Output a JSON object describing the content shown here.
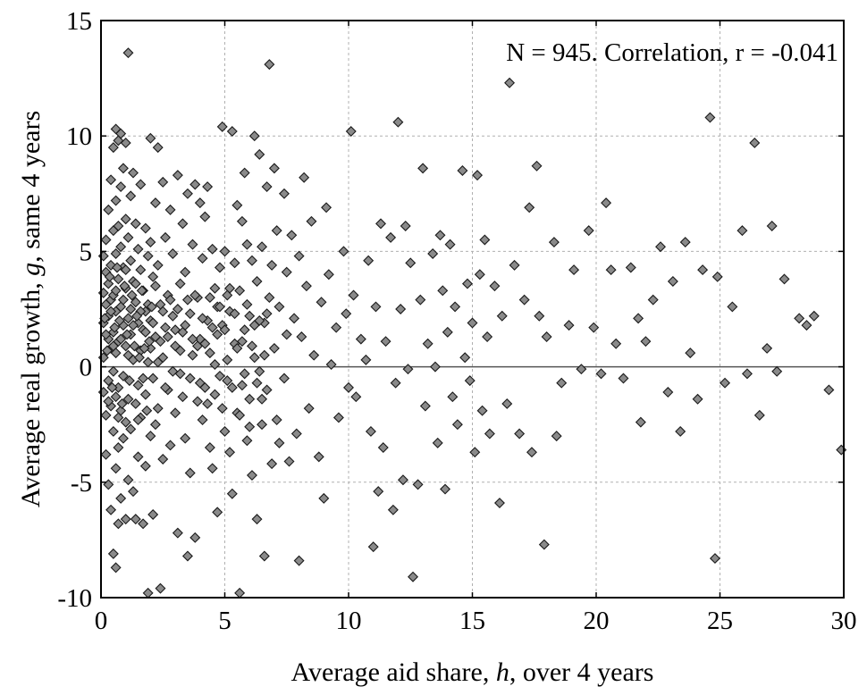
{
  "chart_data": {
    "type": "scatter",
    "title": "",
    "annotation": "N = 945. Correlation, r = -0.041",
    "xlabel_prefix": "Average aid share, ",
    "xlabel_var": "h",
    "xlabel_suffix": ", over 4 years",
    "ylabel_prefix": "Average real growth, ",
    "ylabel_var": "g",
    "ylabel_suffix": ", same 4 years",
    "xlim": [
      0,
      30
    ],
    "ylim": [
      -10,
      15
    ],
    "xticks": [
      0,
      5,
      10,
      15,
      20,
      25,
      30
    ],
    "yticks": [
      -10,
      -5,
      0,
      5,
      10,
      15
    ],
    "grid": "dashed",
    "zero_line": true,
    "marker": "diamond",
    "colors": {
      "marker_fill": "#8a8a8a",
      "marker_edge": "#1a1a1a",
      "grid": "#b0b0b0",
      "axis": "#000000"
    },
    "sample_size": 945,
    "correlation": -0.041,
    "points": [
      [
        0.1,
        4.8
      ],
      [
        0.1,
        3.2
      ],
      [
        0.1,
        1.9
      ],
      [
        0.1,
        0.4
      ],
      [
        0.1,
        -1.1
      ],
      [
        0.2,
        5.5
      ],
      [
        0.2,
        2.7
      ],
      [
        0.2,
        -2.1
      ],
      [
        0.2,
        -3.8
      ],
      [
        0.2,
        4.1
      ],
      [
        0.3,
        6.8
      ],
      [
        0.3,
        3.6
      ],
      [
        0.3,
        1.2
      ],
      [
        0.3,
        -0.6
      ],
      [
        0.3,
        -5.1
      ],
      [
        0.3,
        2.2
      ],
      [
        0.4,
        8.1
      ],
      [
        0.4,
        4.4
      ],
      [
        0.4,
        0.8
      ],
      [
        0.4,
        -1.7
      ],
      [
        0.4,
        -6.2
      ],
      [
        0.4,
        2.9
      ],
      [
        0.5,
        9.5
      ],
      [
        0.5,
        5.9
      ],
      [
        0.5,
        3.1
      ],
      [
        0.5,
        -0.2
      ],
      [
        0.5,
        -2.8
      ],
      [
        0.5,
        -8.1
      ],
      [
        0.5,
        1.5
      ],
      [
        0.6,
        10.3
      ],
      [
        0.6,
        7.2
      ],
      [
        0.6,
        4.9
      ],
      [
        0.6,
        2.4
      ],
      [
        0.6,
        -1.3
      ],
      [
        0.6,
        -4.4
      ],
      [
        0.6,
        -8.7
      ],
      [
        0.6,
        0.6
      ],
      [
        0.7,
        9.8
      ],
      [
        0.7,
        6.1
      ],
      [
        0.7,
        3.8
      ],
      [
        0.7,
        1.1
      ],
      [
        0.7,
        -0.9
      ],
      [
        0.7,
        -3.5
      ],
      [
        0.7,
        -6.8
      ],
      [
        0.8,
        10.1
      ],
      [
        0.8,
        7.8
      ],
      [
        0.8,
        5.2
      ],
      [
        0.8,
        2.6
      ],
      [
        0.8,
        -1.9
      ],
      [
        0.8,
        -5.7
      ],
      [
        0.9,
        8.6
      ],
      [
        0.9,
        4.3
      ],
      [
        0.9,
        1.8
      ],
      [
        0.9,
        -0.4
      ],
      [
        0.9,
        -3.1
      ],
      [
        1.0,
        9.7
      ],
      [
        1.0,
        6.4
      ],
      [
        1.0,
        3.4
      ],
      [
        1.0,
        0.9
      ],
      [
        1.0,
        -2.4
      ],
      [
        1.0,
        -6.6
      ],
      [
        1.1,
        13.6
      ],
      [
        1.1,
        5.6
      ],
      [
        1.1,
        2.1
      ],
      [
        1.1,
        -1.4
      ],
      [
        1.1,
        -4.9
      ],
      [
        1.2,
        7.4
      ],
      [
        1.2,
        4.6
      ],
      [
        1.2,
        1.4
      ],
      [
        1.2,
        -2.7
      ],
      [
        1.3,
        8.4
      ],
      [
        1.3,
        3.7
      ],
      [
        1.3,
        0.3
      ],
      [
        1.3,
        -5.4
      ],
      [
        1.4,
        6.2
      ],
      [
        1.4,
        2.8
      ],
      [
        1.4,
        -1.6
      ],
      [
        1.4,
        -6.6
      ],
      [
        1.5,
        5.1
      ],
      [
        1.5,
        1.9
      ],
      [
        1.5,
        -0.8
      ],
      [
        1.5,
        -3.9
      ],
      [
        1.6,
        7.9
      ],
      [
        1.6,
        4.2
      ],
      [
        1.6,
        0.7
      ],
      [
        1.6,
        -2.2
      ],
      [
        1.7,
        3.3
      ],
      [
        1.7,
        -6.8
      ],
      [
        1.7,
        1.6
      ],
      [
        1.8,
        6.0
      ],
      [
        1.8,
        2.4
      ],
      [
        1.8,
        -1.2
      ],
      [
        1.8,
        -4.3
      ],
      [
        1.9,
        4.8
      ],
      [
        1.9,
        0.2
      ],
      [
        1.9,
        -9.8
      ],
      [
        2.0,
        9.9
      ],
      [
        2.0,
        5.4
      ],
      [
        2.0,
        2.0
      ],
      [
        2.0,
        -3.0
      ],
      [
        2.1,
        3.9
      ],
      [
        2.1,
        -0.5
      ],
      [
        2.1,
        -6.4
      ],
      [
        2.2,
        7.1
      ],
      [
        2.2,
        1.3
      ],
      [
        2.2,
        -2.5
      ],
      [
        2.3,
        9.5
      ],
      [
        2.3,
        4.4
      ],
      [
        2.3,
        -1.8
      ],
      [
        2.4,
        2.7
      ],
      [
        2.4,
        -9.6
      ],
      [
        2.5,
        8.0
      ],
      [
        2.5,
        0.4
      ],
      [
        2.5,
        -4.0
      ],
      [
        2.6,
        5.6
      ],
      [
        2.6,
        1.7
      ],
      [
        2.7,
        3.1
      ],
      [
        2.7,
        -1.0
      ],
      [
        2.8,
        6.8
      ],
      [
        2.8,
        -3.4
      ],
      [
        2.9,
        2.2
      ],
      [
        2.9,
        4.9
      ],
      [
        3.0,
        0.9
      ],
      [
        3.0,
        -2.0
      ],
      [
        3.1,
        8.3
      ],
      [
        3.1,
        -7.2
      ],
      [
        3.2,
        3.6
      ],
      [
        3.2,
        -0.3
      ],
      [
        3.3,
        6.2
      ],
      [
        3.3,
        1.5
      ],
      [
        3.4,
        -3.1
      ],
      [
        3.4,
        4.1
      ],
      [
        3.5,
        7.5
      ],
      [
        3.5,
        -8.2
      ],
      [
        3.6,
        2.3
      ],
      [
        3.6,
        -4.6
      ],
      [
        3.7,
        5.3
      ],
      [
        3.7,
        0.5
      ],
      [
        3.8,
        7.9
      ],
      [
        3.8,
        -7.4
      ],
      [
        3.9,
        3.0
      ],
      [
        3.9,
        -1.5
      ],
      [
        4.0,
        7.1
      ],
      [
        4.0,
        1.2
      ],
      [
        4.1,
        -2.3
      ],
      [
        4.1,
        4.7
      ],
      [
        4.2,
        6.5
      ],
      [
        4.2,
        -0.9
      ],
      [
        4.3,
        7.8
      ],
      [
        4.3,
        2.0
      ],
      [
        4.4,
        -3.5
      ],
      [
        4.4,
        0.6
      ],
      [
        4.5,
        5.1
      ],
      [
        4.5,
        -4.4
      ],
      [
        4.6,
        3.4
      ],
      [
        4.6,
        -1.2
      ],
      [
        4.7,
        -6.3
      ],
      [
        4.7,
        2.6
      ],
      [
        4.8,
        4.3
      ],
      [
        4.8,
        -0.4
      ],
      [
        4.9,
        10.4
      ],
      [
        4.9,
        1.8
      ],
      [
        5.0,
        -2.8
      ],
      [
        5.0,
        5.0
      ],
      [
        5.1,
        3.1
      ],
      [
        5.1,
        -0.6
      ],
      [
        5.2,
        2.4
      ],
      [
        5.2,
        -3.7
      ],
      [
        5.3,
        10.2
      ],
      [
        5.3,
        -5.5
      ],
      [
        5.4,
        4.5
      ],
      [
        5.4,
        1.0
      ],
      [
        5.5,
        7.0
      ],
      [
        5.5,
        -2.0
      ],
      [
        5.6,
        -9.8
      ],
      [
        5.6,
        3.3
      ],
      [
        5.7,
        6.3
      ],
      [
        5.7,
        -0.8
      ],
      [
        5.8,
        8.4
      ],
      [
        5.8,
        1.6
      ],
      [
        5.9,
        -3.2
      ],
      [
        5.9,
        5.3
      ],
      [
        6.0,
        2.2
      ],
      [
        6.0,
        -1.4
      ],
      [
        6.1,
        4.6
      ],
      [
        6.1,
        -4.7
      ],
      [
        6.2,
        10.0
      ],
      [
        6.2,
        0.4
      ],
      [
        6.3,
        -6.6
      ],
      [
        6.3,
        3.7
      ],
      [
        6.4,
        9.2
      ],
      [
        6.4,
        -0.2
      ],
      [
        6.5,
        5.2
      ],
      [
        6.5,
        -2.5
      ],
      [
        6.6,
        1.9
      ],
      [
        6.6,
        -8.2
      ],
      [
        6.7,
        7.8
      ],
      [
        6.7,
        -1.0
      ],
      [
        6.8,
        13.1
      ],
      [
        6.8,
        3.0
      ],
      [
        6.9,
        -4.2
      ],
      [
        6.9,
        4.4
      ],
      [
        7.0,
        8.6
      ],
      [
        7.0,
        0.8
      ],
      [
        7.1,
        -2.3
      ],
      [
        7.1,
        5.9
      ],
      [
        7.2,
        2.6
      ],
      [
        7.2,
        -3.3
      ],
      [
        7.4,
        7.5
      ],
      [
        7.4,
        -0.5
      ],
      [
        7.5,
        4.1
      ],
      [
        7.5,
        1.4
      ],
      [
        7.6,
        -4.1
      ],
      [
        7.7,
        5.7
      ],
      [
        7.8,
        2.1
      ],
      [
        7.9,
        -2.9
      ],
      [
        8.0,
        4.8
      ],
      [
        8.0,
        -8.4
      ],
      [
        8.1,
        1.3
      ],
      [
        8.2,
        8.2
      ],
      [
        8.3,
        3.5
      ],
      [
        8.4,
        -1.8
      ],
      [
        8.5,
        6.3
      ],
      [
        8.6,
        0.5
      ],
      [
        8.8,
        -3.9
      ],
      [
        8.9,
        2.8
      ],
      [
        9.0,
        -5.7
      ],
      [
        9.1,
        6.9
      ],
      [
        9.2,
        4.0
      ],
      [
        9.3,
        0.1
      ],
      [
        9.5,
        1.7
      ],
      [
        9.6,
        -2.2
      ],
      [
        9.8,
        5.0
      ],
      [
        9.9,
        2.3
      ],
      [
        10.0,
        -0.9
      ],
      [
        10.1,
        10.2
      ],
      [
        10.2,
        3.1
      ],
      [
        10.3,
        -1.3
      ],
      [
        10.5,
        1.2
      ],
      [
        10.7,
        0.3
      ],
      [
        10.8,
        4.6
      ],
      [
        10.9,
        -2.8
      ],
      [
        11.0,
        -7.8
      ],
      [
        11.1,
        2.6
      ],
      [
        11.2,
        -5.4
      ],
      [
        11.3,
        6.2
      ],
      [
        11.4,
        -3.5
      ],
      [
        11.5,
        1.1
      ],
      [
        11.7,
        5.6
      ],
      [
        11.8,
        -6.2
      ],
      [
        11.9,
        -0.7
      ],
      [
        12.0,
        10.6
      ],
      [
        12.1,
        2.5
      ],
      [
        12.2,
        -4.9
      ],
      [
        12.3,
        6.1
      ],
      [
        12.4,
        -0.1
      ],
      [
        12.5,
        4.5
      ],
      [
        12.6,
        -9.1
      ],
      [
        12.8,
        -5.1
      ],
      [
        12.9,
        2.9
      ],
      [
        13.0,
        8.6
      ],
      [
        13.1,
        -1.7
      ],
      [
        13.2,
        1.0
      ],
      [
        13.4,
        4.9
      ],
      [
        13.5,
        0.0
      ],
      [
        13.6,
        -3.3
      ],
      [
        13.7,
        5.7
      ],
      [
        13.8,
        3.3
      ],
      [
        13.9,
        -5.3
      ],
      [
        14.0,
        1.5
      ],
      [
        14.1,
        5.3
      ],
      [
        14.2,
        -1.3
      ],
      [
        14.3,
        2.6
      ],
      [
        14.4,
        -2.5
      ],
      [
        14.6,
        8.5
      ],
      [
        14.7,
        0.4
      ],
      [
        14.8,
        3.6
      ],
      [
        14.9,
        -0.6
      ],
      [
        15.0,
        1.9
      ],
      [
        15.1,
        -3.7
      ],
      [
        15.2,
        8.3
      ],
      [
        15.3,
        4.0
      ],
      [
        15.4,
        -1.9
      ],
      [
        15.5,
        5.5
      ],
      [
        15.6,
        1.3
      ],
      [
        15.7,
        -2.9
      ],
      [
        15.9,
        3.5
      ],
      [
        16.1,
        -5.9
      ],
      [
        16.2,
        2.2
      ],
      [
        16.4,
        -1.6
      ],
      [
        16.5,
        12.3
      ],
      [
        16.7,
        4.4
      ],
      [
        16.9,
        -2.9
      ],
      [
        17.1,
        2.9
      ],
      [
        17.3,
        6.9
      ],
      [
        17.4,
        -3.7
      ],
      [
        17.6,
        8.7
      ],
      [
        17.7,
        2.2
      ],
      [
        17.9,
        -7.7
      ],
      [
        18.0,
        1.3
      ],
      [
        18.3,
        5.4
      ],
      [
        18.4,
        -3.0
      ],
      [
        18.6,
        -0.7
      ],
      [
        18.9,
        1.8
      ],
      [
        19.1,
        4.2
      ],
      [
        19.4,
        -0.1
      ],
      [
        19.7,
        5.9
      ],
      [
        19.9,
        1.7
      ],
      [
        20.2,
        -0.3
      ],
      [
        20.4,
        7.1
      ],
      [
        20.6,
        4.2
      ],
      [
        20.8,
        1.0
      ],
      [
        21.1,
        -0.5
      ],
      [
        21.4,
        4.3
      ],
      [
        21.7,
        2.1
      ],
      [
        21.8,
        -2.4
      ],
      [
        22.0,
        1.1
      ],
      [
        22.3,
        2.9
      ],
      [
        22.6,
        5.2
      ],
      [
        22.9,
        -1.1
      ],
      [
        23.1,
        3.7
      ],
      [
        23.4,
        -2.8
      ],
      [
        23.6,
        5.4
      ],
      [
        23.8,
        0.6
      ],
      [
        24.1,
        -1.4
      ],
      [
        24.3,
        4.2
      ],
      [
        24.6,
        10.8
      ],
      [
        24.8,
        -8.3
      ],
      [
        24.9,
        3.9
      ],
      [
        25.2,
        -0.7
      ],
      [
        25.5,
        2.6
      ],
      [
        25.9,
        5.9
      ],
      [
        26.1,
        -0.3
      ],
      [
        26.4,
        9.7
      ],
      [
        26.6,
        -2.1
      ],
      [
        26.9,
        0.8
      ],
      [
        27.1,
        6.1
      ],
      [
        27.3,
        -0.2
      ],
      [
        27.6,
        3.8
      ],
      [
        28.2,
        2.1
      ],
      [
        28.5,
        1.8
      ],
      [
        28.8,
        2.2
      ],
      [
        29.4,
        -1.0
      ],
      [
        29.9,
        -3.6
      ],
      [
        0.2,
        1.4
      ],
      [
        0.3,
        -1.5
      ],
      [
        0.4,
        2.4
      ],
      [
        0.5,
        0.9
      ],
      [
        0.6,
        3.3
      ],
      [
        0.7,
        -2.2
      ],
      [
        0.8,
        1.2
      ],
      [
        0.9,
        2.9
      ],
      [
        1.0,
        4.2
      ],
      [
        1.1,
        0.5
      ],
      [
        1.2,
        2.5
      ],
      [
        1.3,
        1.8
      ],
      [
        1.4,
        3.6
      ],
      [
        1.5,
        -2.3
      ],
      [
        1.6,
        2.4
      ],
      [
        1.7,
        -0.5
      ],
      [
        1.8,
        1.5
      ],
      [
        1.9,
        2.7
      ],
      [
        2.0,
        0.8
      ],
      [
        2.1,
        1.9
      ],
      [
        2.2,
        3.5
      ],
      [
        2.3,
        0.2
      ],
      [
        2.4,
        1.1
      ],
      [
        2.5,
        2.4
      ],
      [
        2.6,
        -0.9
      ],
      [
        2.7,
        1.3
      ],
      [
        2.8,
        2.9
      ],
      [
        2.9,
        -0.2
      ],
      [
        3.0,
        1.6
      ],
      [
        3.1,
        2.5
      ],
      [
        3.2,
        0.7
      ],
      [
        3.3,
        -1.3
      ],
      [
        3.4,
        1.8
      ],
      [
        3.5,
        2.9
      ],
      [
        3.6,
        -0.5
      ],
      [
        3.7,
        1.2
      ],
      [
        3.8,
        3.1
      ],
      [
        3.9,
        0.9
      ],
      [
        4.0,
        -0.7
      ],
      [
        4.1,
        2.1
      ],
      [
        4.2,
        1.0
      ],
      [
        4.3,
        -1.6
      ],
      [
        4.4,
        3.0
      ],
      [
        4.5,
        1.7
      ],
      [
        4.6,
        0.1
      ],
      [
        4.7,
        1.4
      ],
      [
        4.8,
        2.6
      ],
      [
        4.9,
        -1.8
      ],
      [
        5.0,
        1.6
      ],
      [
        5.1,
        0.3
      ],
      [
        5.2,
        3.4
      ],
      [
        5.3,
        -0.9
      ],
      [
        5.4,
        2.3
      ],
      [
        5.5,
        0.8
      ],
      [
        5.6,
        -2.1
      ],
      [
        5.7,
        1.1
      ],
      [
        5.8,
        -0.3
      ],
      [
        5.9,
        2.7
      ],
      [
        6.0,
        -2.6
      ],
      [
        6.1,
        0.9
      ],
      [
        6.2,
        1.8
      ],
      [
        6.3,
        -0.7
      ],
      [
        6.4,
        2.0
      ],
      [
        6.5,
        -1.4
      ],
      [
        6.6,
        0.5
      ],
      [
        6.7,
        2.3
      ],
      [
        0.15,
        2.1
      ],
      [
        0.25,
        0.7
      ],
      [
        0.35,
        3.9
      ],
      [
        0.45,
        -0.9
      ],
      [
        0.55,
        1.7
      ],
      [
        0.65,
        4.3
      ],
      [
        0.75,
        2.0
      ],
      [
        0.85,
        -1.6
      ],
      [
        0.95,
        3.5
      ],
      [
        1.05,
        1.4
      ],
      [
        1.15,
        -0.6
      ],
      [
        1.25,
        3.1
      ],
      [
        1.35,
        0.9
      ],
      [
        1.45,
        2.2
      ],
      [
        1.55,
        0.4
      ],
      [
        1.65,
        3.3
      ],
      [
        1.75,
        0.8
      ],
      [
        1.85,
        -1.9
      ],
      [
        1.95,
        1.1
      ],
      [
        2.05,
        2.6
      ]
    ]
  }
}
